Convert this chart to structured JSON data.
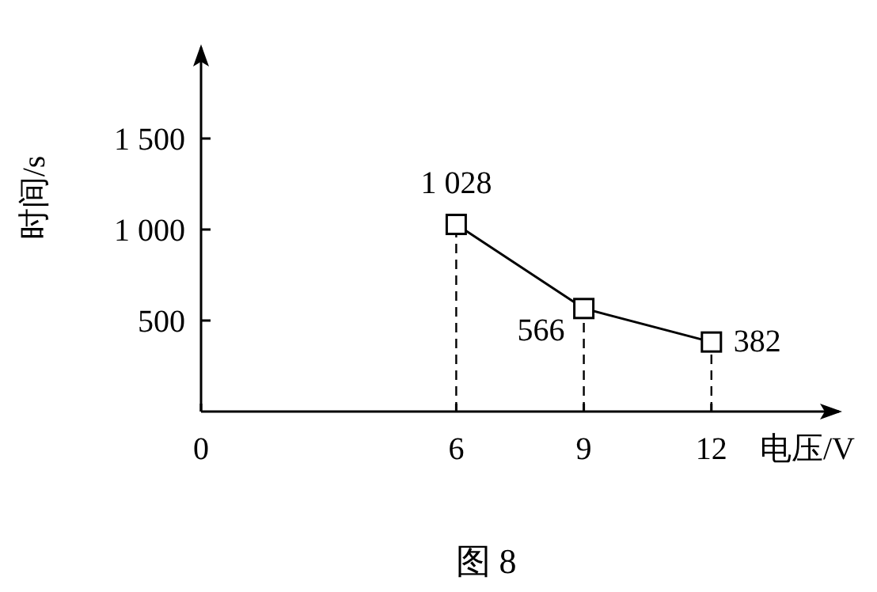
{
  "chart_data": {
    "type": "line",
    "title": "图 8",
    "xlabel": "电压/V",
    "ylabel": "时间/s",
    "x": [
      6,
      9,
      12
    ],
    "series": [
      {
        "color": "#000000",
        "values": [
          1028,
          566,
          382
        ],
        "value_labels": [
          "1 028",
          "566",
          "382"
        ]
      }
    ],
    "xlim": [
      0,
      15
    ],
    "xticks": [
      0,
      6,
      9,
      12
    ],
    "ylim": [
      0,
      2000
    ],
    "yticks": [
      {
        "value": 500,
        "label": "500"
      },
      {
        "value": 1000,
        "label": "1 000"
      },
      {
        "value": 1500,
        "label": "1 500"
      }
    ],
    "ref_lines": [
      {
        "axis": "x",
        "value": 6,
        "line_style": "dashed"
      },
      {
        "axis": "x",
        "value": 9,
        "line_style": "dashed"
      },
      {
        "axis": "x",
        "value": 12,
        "line_style": "dashed"
      }
    ],
    "marker": "square",
    "line_style": "solid"
  }
}
